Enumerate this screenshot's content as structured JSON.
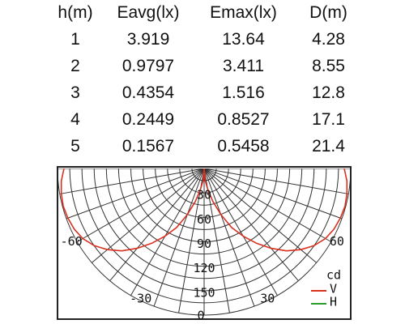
{
  "table": {
    "headers": [
      "h(m)",
      "Eavg(lx)",
      "Emax(lx)",
      "D(m)"
    ],
    "rows": [
      [
        "1",
        "3.919",
        "13.64",
        "4.28"
      ],
      [
        "2",
        "0.9797",
        "3.411",
        "8.55"
      ],
      [
        "3",
        "0.4354",
        "1.516",
        "12.8"
      ],
      [
        "4",
        "0.2449",
        "0.8527",
        "17.1"
      ],
      [
        "5",
        "0.1567",
        "0.5458",
        "21.4"
      ]
    ]
  },
  "chart_data": {
    "type": "polar",
    "unit": "cd",
    "grid": true,
    "radial_ticks": [
      30,
      60,
      90,
      120,
      150
    ],
    "radial_tick_labels": [
      "30",
      "60",
      "90",
      "120",
      "150"
    ],
    "rmax": 180,
    "angle_labels": [
      "-60",
      "60",
      "-30",
      "30",
      "0"
    ],
    "angle_label_values": [
      -60,
      60,
      -30,
      30,
      0
    ],
    "legend_position": "bottom-right",
    "series": [
      {
        "name": "V",
        "color": "#d93020",
        "angle_deg": [
          -90,
          -85,
          -80,
          -75,
          -70,
          -65,
          -60,
          -55,
          -50,
          -45,
          -40,
          -35,
          -30,
          -25,
          -20,
          -15,
          -10,
          -5,
          0,
          5,
          10,
          15,
          20,
          25,
          30,
          35,
          40,
          45,
          50,
          55,
          60,
          65,
          70,
          75,
          80,
          85,
          90
        ],
        "intensity_cd": [
          172,
          176,
          178,
          179,
          178,
          176,
          172,
          165,
          155,
          143,
          128,
          112,
          96,
          80,
          60,
          42,
          26,
          15,
          0,
          15,
          26,
          42,
          60,
          80,
          96,
          112,
          128,
          143,
          155,
          165,
          172,
          176,
          178,
          179,
          178,
          176,
          172
        ]
      },
      {
        "name": "H",
        "color": "#2a9a2a",
        "angle_deg": [],
        "intensity_cd": []
      }
    ]
  }
}
